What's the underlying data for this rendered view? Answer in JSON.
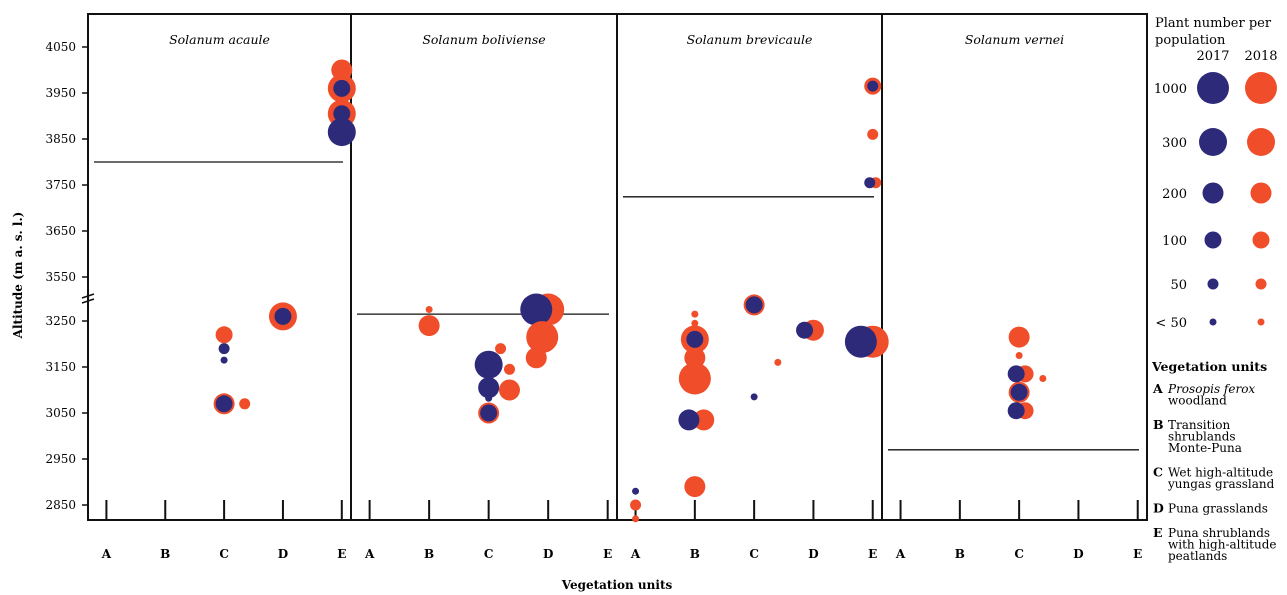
{
  "chart_data": {
    "type": "scatter",
    "title": "",
    "xlabel": "Vegetation units",
    "ylabel": "Altitude (m a. s. l.)",
    "yticks": [
      2850,
      2950,
      3050,
      3150,
      3250,
      3550,
      3650,
      3750,
      3850,
      3950,
      4050
    ],
    "axis_break_between": [
      3250,
      3550
    ],
    "categories": [
      "A",
      "B",
      "C",
      "D",
      "E"
    ],
    "panels": [
      {
        "species": "Solanum acaule",
        "threshold_altitude": 3800,
        "points": [
          {
            "unit": "C",
            "x": 3.0,
            "altitude": 3220,
            "year": "2018",
            "size_class": "100"
          },
          {
            "unit": "C",
            "x": 3.0,
            "altitude": 3190,
            "year": "2017",
            "size_class": "50"
          },
          {
            "unit": "C",
            "x": 3.0,
            "altitude": 3165,
            "year": "2017",
            "size_class": "<50"
          },
          {
            "unit": "C",
            "x": 3.0,
            "altitude": 3070,
            "year": "2018",
            "size_class": "200"
          },
          {
            "unit": "C",
            "x": 3.0,
            "altitude": 3070,
            "year": "2017",
            "size_class": "100"
          },
          {
            "unit": "C",
            "x": 3.35,
            "altitude": 3070,
            "year": "2018",
            "size_class": "50"
          },
          {
            "unit": "D",
            "x": 4.0,
            "altitude": 3260,
            "year": "2018",
            "size_class": "300"
          },
          {
            "unit": "D",
            "x": 4.0,
            "altitude": 3260,
            "year": "2017",
            "size_class": "100"
          },
          {
            "unit": "E",
            "x": 5.0,
            "altitude": 4000,
            "year": "2018",
            "size_class": "200"
          },
          {
            "unit": "E",
            "x": 5.0,
            "altitude": 3960,
            "year": "2018",
            "size_class": "300"
          },
          {
            "unit": "E",
            "x": 5.0,
            "altitude": 3960,
            "year": "2017",
            "size_class": "100"
          },
          {
            "unit": "E",
            "x": 5.0,
            "altitude": 3905,
            "year": "2018",
            "size_class": "300"
          },
          {
            "unit": "E",
            "x": 5.0,
            "altitude": 3905,
            "year": "2017",
            "size_class": "100"
          },
          {
            "unit": "E",
            "x": 5.0,
            "altitude": 3865,
            "year": "2017",
            "size_class": "300"
          }
        ]
      },
      {
        "species": "Solanum boliviense",
        "threshold_altitude": 3265,
        "points": [
          {
            "unit": "B",
            "x": 2.0,
            "altitude": 3275,
            "year": "2018",
            "size_class": "<50"
          },
          {
            "unit": "B",
            "x": 2.0,
            "altitude": 3240,
            "year": "2018",
            "size_class": "200"
          },
          {
            "unit": "C",
            "x": 3.2,
            "altitude": 3190,
            "year": "2018",
            "size_class": "50"
          },
          {
            "unit": "C",
            "x": 3.0,
            "altitude": 3155,
            "year": "2017",
            "size_class": "300"
          },
          {
            "unit": "C",
            "x": 3.35,
            "altitude": 3145,
            "year": "2018",
            "size_class": "50"
          },
          {
            "unit": "C",
            "x": 3.0,
            "altitude": 3105,
            "year": "2017",
            "size_class": "200"
          },
          {
            "unit": "C",
            "x": 3.35,
            "altitude": 3100,
            "year": "2018",
            "size_class": "200"
          },
          {
            "unit": "C",
            "x": 3.0,
            "altitude": 3082,
            "year": "2017",
            "size_class": "<50"
          },
          {
            "unit": "C",
            "x": 3.0,
            "altitude": 3050,
            "year": "2018",
            "size_class": "200"
          },
          {
            "unit": "C",
            "x": 3.0,
            "altitude": 3050,
            "year": "2017",
            "size_class": "100"
          },
          {
            "unit": "D",
            "x": 4.0,
            "altitude": 3275,
            "year": "2018",
            "size_class": "1000"
          },
          {
            "unit": "D",
            "x": 3.8,
            "altitude": 3275,
            "year": "2017",
            "size_class": "1000"
          },
          {
            "unit": "D",
            "x": 3.9,
            "altitude": 3215,
            "year": "2018",
            "size_class": "1000"
          },
          {
            "unit": "D",
            "x": 3.8,
            "altitude": 3170,
            "year": "2018",
            "size_class": "200"
          }
        ]
      },
      {
        "species": "Solanum brevicaule",
        "threshold_altitude": 3520,
        "points": [
          {
            "unit": "A",
            "x": 1.0,
            "altitude": 2880,
            "year": "2017",
            "size_class": "<50"
          },
          {
            "unit": "A",
            "x": 1.0,
            "altitude": 2850,
            "year": "2018",
            "size_class": "50"
          },
          {
            "unit": "A",
            "x": 1.0,
            "altitude": 2820,
            "year": "2018",
            "size_class": "<50"
          },
          {
            "unit": "B",
            "x": 2.0,
            "altitude": 3265,
            "year": "2018",
            "size_class": "<50"
          },
          {
            "unit": "B",
            "x": 2.0,
            "altitude": 3245,
            "year": "2018",
            "size_class": "<50"
          },
          {
            "unit": "B",
            "x": 2.0,
            "altitude": 3210,
            "year": "2018",
            "size_class": "300"
          },
          {
            "unit": "B",
            "x": 2.0,
            "altitude": 3210,
            "year": "2017",
            "size_class": "100"
          },
          {
            "unit": "B",
            "x": 2.0,
            "altitude": 3170,
            "year": "2018",
            "size_class": "200"
          },
          {
            "unit": "B",
            "x": 2.0,
            "altitude": 3125,
            "year": "2018",
            "size_class": "1000"
          },
          {
            "unit": "B",
            "x": 2.15,
            "altitude": 3035,
            "year": "2018",
            "size_class": "200"
          },
          {
            "unit": "B",
            "x": 1.9,
            "altitude": 3035,
            "year": "2017",
            "size_class": "200"
          },
          {
            "unit": "B",
            "x": 2.0,
            "altitude": 2890,
            "year": "2018",
            "size_class": "200"
          },
          {
            "unit": "C",
            "x": 3.0,
            "altitude": 3285,
            "year": "2018",
            "size_class": "200"
          },
          {
            "unit": "C",
            "x": 3.0,
            "altitude": 3285,
            "year": "2017",
            "size_class": "100"
          },
          {
            "unit": "C",
            "x": 3.4,
            "altitude": 3160,
            "year": "2018",
            "size_class": "<50"
          },
          {
            "unit": "C",
            "x": 3.0,
            "altitude": 3085,
            "year": "2017",
            "size_class": "<50"
          },
          {
            "unit": "D",
            "x": 4.0,
            "altitude": 3230,
            "year": "2018",
            "size_class": "200"
          },
          {
            "unit": "D",
            "x": 3.85,
            "altitude": 3230,
            "year": "2017",
            "size_class": "100"
          },
          {
            "unit": "E",
            "x": 5.0,
            "altitude": 3965,
            "year": "2018",
            "size_class": "100"
          },
          {
            "unit": "E",
            "x": 5.0,
            "altitude": 3965,
            "year": "2017",
            "size_class": "50"
          },
          {
            "unit": "E",
            "x": 5.0,
            "altitude": 3860,
            "year": "2018",
            "size_class": "50"
          },
          {
            "unit": "E",
            "x": 5.05,
            "altitude": 3755,
            "year": "2018",
            "size_class": "50"
          },
          {
            "unit": "E",
            "x": 4.95,
            "altitude": 3755,
            "year": "2017",
            "size_class": "50"
          },
          {
            "unit": "E",
            "x": 5.0,
            "altitude": 3205,
            "year": "2018",
            "size_class": "1000"
          },
          {
            "unit": "E",
            "x": 4.8,
            "altitude": 3205,
            "year": "2017",
            "size_class": "1000"
          }
        ]
      },
      {
        "species": "Solanum vernei",
        "threshold_altitude": 2970,
        "points": [
          {
            "unit": "C",
            "x": 3.0,
            "altitude": 3215,
            "year": "2018",
            "size_class": "200"
          },
          {
            "unit": "C",
            "x": 3.0,
            "altitude": 3175,
            "year": "2018",
            "size_class": "<50"
          },
          {
            "unit": "C",
            "x": 3.1,
            "altitude": 3135,
            "year": "2018",
            "size_class": "100"
          },
          {
            "unit": "C",
            "x": 2.95,
            "altitude": 3135,
            "year": "2017",
            "size_class": "100"
          },
          {
            "unit": "C",
            "x": 3.4,
            "altitude": 3125,
            "year": "2018",
            "size_class": "<50"
          },
          {
            "unit": "C",
            "x": 3.0,
            "altitude": 3095,
            "year": "2018",
            "size_class": "200"
          },
          {
            "unit": "C",
            "x": 3.0,
            "altitude": 3095,
            "year": "2017",
            "size_class": "100"
          },
          {
            "unit": "C",
            "x": 3.1,
            "altitude": 3055,
            "year": "2018",
            "size_class": "100"
          },
          {
            "unit": "C",
            "x": 2.95,
            "altitude": 3055,
            "year": "2017",
            "size_class": "100"
          }
        ]
      }
    ],
    "legend": {
      "title_line1": "Plant number per",
      "title_line2": "population",
      "years": [
        "2017",
        "2018"
      ],
      "size_classes": [
        "1000",
        "300",
        "200",
        "100",
        "50",
        "< 50"
      ],
      "colors": {
        "2017": "#2e2a7a",
        "2018": "#f04e2b"
      }
    },
    "vegetation_units": {
      "title": "Vegetation units",
      "items": [
        {
          "code": "A",
          "lines": [
            "Prosopis ferox",
            "woodland"
          ],
          "italic_first_line": true
        },
        {
          "code": "B",
          "lines": [
            "Transition",
            "shrublands",
            "Monte-Puna"
          ],
          "italic_first_line": false
        },
        {
          "code": "C",
          "lines": [
            "Wet high-altitude",
            "yungas grassland"
          ],
          "italic_first_line": false
        },
        {
          "code": "D",
          "lines": [
            "Puna grasslands"
          ],
          "italic_first_line": false
        },
        {
          "code": "E",
          "lines": [
            "Puna shrublands",
            "with high-altitude",
            "peatlands"
          ],
          "italic_first_line": false
        }
      ]
    }
  }
}
